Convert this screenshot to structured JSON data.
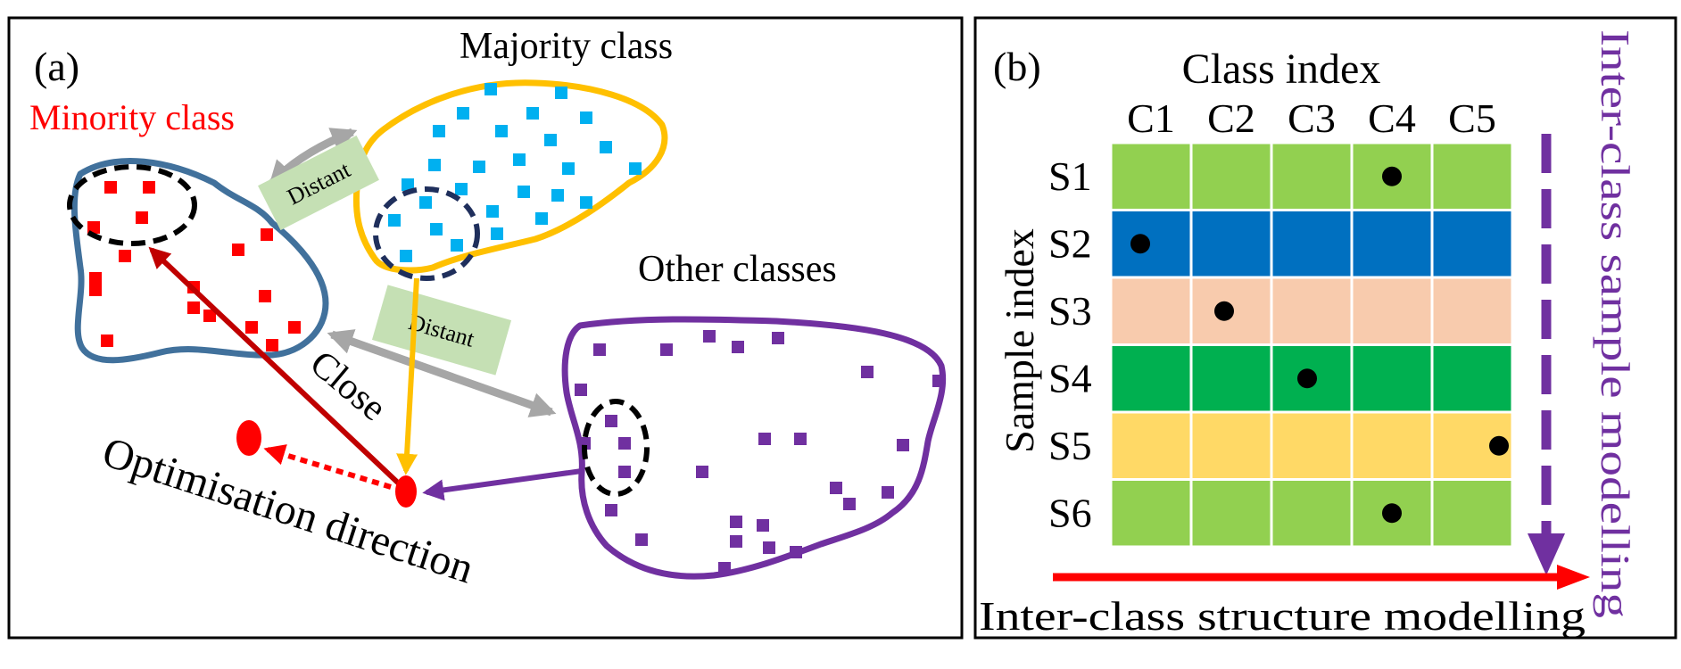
{
  "panel_a": {
    "label": "(a)",
    "majority_label": "Majority class",
    "minority_label": "Minority class",
    "other_label": "Other classes",
    "distant_label_1": "Distant",
    "distant_label_2": "Distant",
    "close_label": "Close",
    "optimisation_label": "Optimisation direction",
    "colors": {
      "majority": "#FFC000",
      "majority_points": "#00B0F0",
      "minority_outline": "#41719C",
      "minority_points": "#FF0000",
      "other": "#7030A0",
      "distant_box": "#C5E0B4",
      "close_arrow": "#C00000",
      "gray_arrow": "#A6A6A6"
    }
  },
  "panel_b": {
    "label": "(b)",
    "column_title": "Class index",
    "row_title": "Sample index",
    "columns": [
      "C1",
      "C2",
      "C3",
      "C4",
      "C5"
    ],
    "rows": [
      {
        "label": "S1",
        "color": "#92D050",
        "dot_col": 3
      },
      {
        "label": "S2",
        "color": "#0070C0",
        "dot_col": 0
      },
      {
        "label": "S3",
        "color": "#F8CBAD",
        "dot_col": 1
      },
      {
        "label": "S4",
        "color": "#00B050",
        "dot_col": 2
      },
      {
        "label": "S5",
        "color": "#FFD966",
        "dot_col": 4
      },
      {
        "label": "S6",
        "color": "#92D050",
        "dot_col": 3
      }
    ],
    "horizontal_label": "Inter-class structure modelling",
    "vertical_label": "Inter-class sample modelling",
    "colors": {
      "horizontal_arrow": "#FF0000",
      "vertical_arrow": "#7030A0"
    }
  }
}
